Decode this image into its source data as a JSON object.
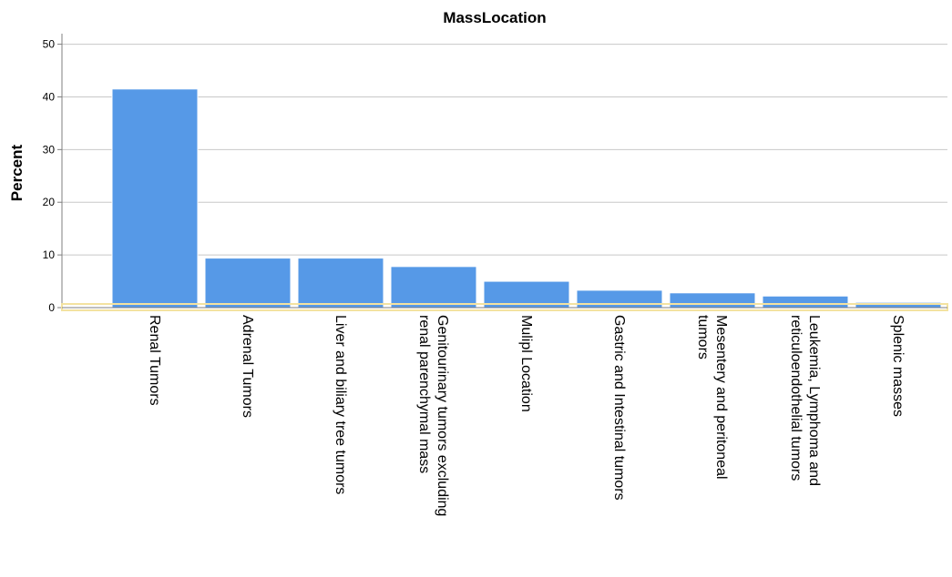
{
  "chart_data": {
    "type": "bar",
    "title": "MassLocation",
    "xlabel": "",
    "ylabel": "Percent",
    "ylim": [
      0,
      52
    ],
    "yticks": [
      0,
      10,
      20,
      30,
      40,
      50
    ],
    "grid": true,
    "categories": [
      [
        "Renal Tumors"
      ],
      [
        "Adrenal Tumors"
      ],
      [
        "Liver and biliary tree tumors"
      ],
      [
        "Genitourinary tumors excluding",
        "renal parenchymal mass"
      ],
      [
        "Mulipl Location"
      ],
      [
        "Gastric and Intestinal tumors"
      ],
      [
        "Mesentery and peritoneal",
        "tumors"
      ],
      [
        "Leukemia, Lymphoma and",
        "reticuloendothelial tumors"
      ],
      [
        "Splenic masses"
      ]
    ],
    "values": [
      41.5,
      9.4,
      9.4,
      7.8,
      5.0,
      3.3,
      2.8,
      2.2,
      1.0
    ],
    "colors": {
      "bar": "#5699E7",
      "bar_border": "#ffffff",
      "grid": "#c8c8c8",
      "axis": "#7f7f7f",
      "baseline_highlight": "#f3e2a0",
      "background": "#ffffff"
    }
  }
}
